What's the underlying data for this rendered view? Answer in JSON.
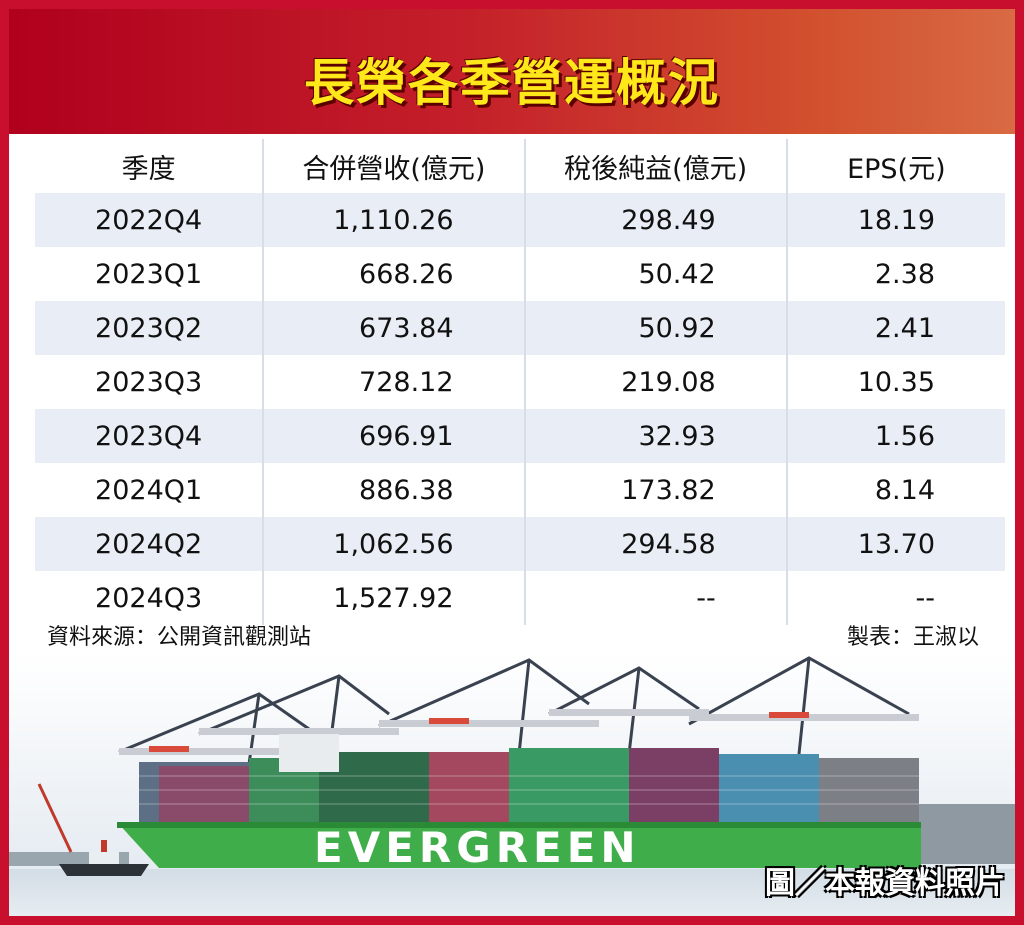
{
  "title": "長榮各季營運概況",
  "headers": [
    "季度",
    "合併營收(億元)",
    "稅後純益(億元)",
    "EPS(元)"
  ],
  "rows": [
    [
      "2022Q4",
      "1,110.26",
      "298.49",
      "18.19"
    ],
    [
      "2023Q1",
      "668.26",
      "50.42",
      "2.38"
    ],
    [
      "2023Q2",
      "673.84",
      "50.92",
      "2.41"
    ],
    [
      "2023Q3",
      "728.12",
      "219.08",
      "10.35"
    ],
    [
      "2023Q4",
      "696.91",
      "32.93",
      "1.56"
    ],
    [
      "2024Q1",
      "886.38",
      "173.82",
      "8.14"
    ],
    [
      "2024Q2",
      "1,062.56",
      "294.58",
      "13.70"
    ],
    [
      "2024Q3",
      "1,527.92",
      "--",
      "--"
    ]
  ],
  "source": "資料來源：公開資訊觀測站",
  "maker": "製表：王淑以",
  "photo": {
    "ship_text": "EVERGREEN",
    "caption": "圖／本報資料照片"
  },
  "colors": {
    "frame": "#c8102e",
    "title_text": "#ffe81a",
    "row_shade": "#e9edf5",
    "hull": "#3fae4a"
  }
}
